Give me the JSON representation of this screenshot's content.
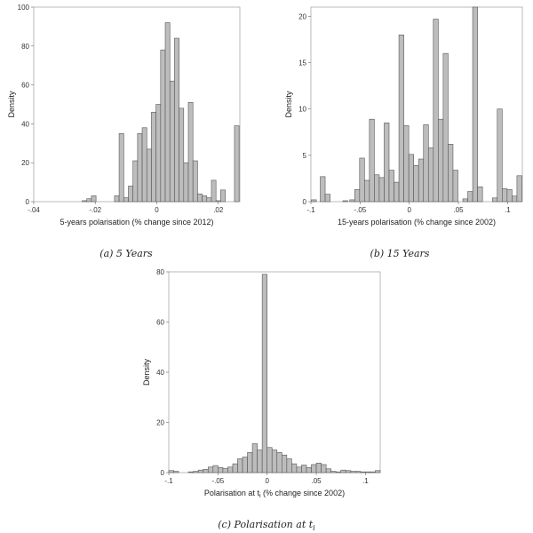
{
  "chart_data": [
    {
      "type": "bar",
      "id": "a",
      "caption": "(a) 5 Years",
      "xlabel": "5-years polarisation (% change since 2012)",
      "ylabel": "Density",
      "xlim": [
        -0.04,
        0.027
      ],
      "ylim": [
        0,
        100
      ],
      "xticks": [
        -0.04,
        -0.02,
        0,
        0.02
      ],
      "xtick_labels": [
        "-.04",
        "-.02",
        "0",
        ".02"
      ],
      "yticks": [
        0,
        20,
        40,
        60,
        80,
        100
      ],
      "ytick_labels": [
        "0",
        "20",
        "40",
        "60",
        "80",
        "100"
      ],
      "grid": false,
      "bar_width": 0.0015,
      "x": [
        -0.0235,
        -0.022,
        -0.0205,
        -0.013,
        -0.0115,
        -0.01,
        -0.0085,
        -0.007,
        -0.0055,
        -0.004,
        -0.0025,
        -0.001,
        0.0005,
        0.002,
        0.0035,
        0.005,
        0.0065,
        0.008,
        0.0095,
        0.011,
        0.0125,
        0.014,
        0.0155,
        0.017,
        0.0185,
        0.02,
        0.0215,
        0.026
      ],
      "values": [
        0.5,
        1.5,
        3,
        3,
        35,
        2,
        8,
        21,
        35,
        38,
        27,
        46,
        50,
        78,
        92,
        62,
        84,
        48,
        20,
        51,
        21,
        4,
        3,
        2,
        11,
        0.5,
        6,
        39
      ]
    },
    {
      "type": "bar",
      "id": "b",
      "caption": "(b) 15 Years",
      "xlabel": "15-years polarisation (% change since 2002)",
      "ylabel": "Density",
      "xlim": [
        -0.1,
        0.115
      ],
      "ylim": [
        0,
        21
      ],
      "xticks": [
        -0.1,
        -0.05,
        0,
        0.05,
        0.1
      ],
      "xtick_labels": [
        "-.1",
        "-.05",
        "0",
        ".05",
        ".1"
      ],
      "yticks": [
        0,
        5,
        10,
        15,
        20
      ],
      "ytick_labels": [
        "0",
        "5",
        "10",
        "15",
        "20"
      ],
      "grid": false,
      "bar_width": 0.005,
      "x": [
        -0.097,
        -0.088,
        -0.083,
        -0.065,
        -0.058,
        -0.053,
        -0.048,
        -0.043,
        -0.038,
        -0.033,
        -0.028,
        -0.023,
        -0.018,
        -0.013,
        -0.008,
        -0.003,
        0.002,
        0.007,
        0.012,
        0.017,
        0.022,
        0.027,
        0.032,
        0.037,
        0.042,
        0.047,
        0.057,
        0.062,
        0.067,
        0.072,
        0.087,
        0.092,
        0.097,
        0.102,
        0.107,
        0.112
      ],
      "values": [
        0.2,
        2.7,
        0.8,
        0.1,
        0.2,
        1.3,
        4.7,
        2.3,
        8.9,
        2.9,
        2.6,
        8.5,
        3.4,
        2.1,
        18,
        8.2,
        5.1,
        3.9,
        4.6,
        8.3,
        5.8,
        19.7,
        8.9,
        16,
        6.2,
        3.4,
        0.3,
        1.1,
        21,
        1.6,
        0.4,
        10,
        1.4,
        1.3,
        0.6,
        2.8
      ]
    },
    {
      "type": "bar",
      "id": "c",
      "caption": "(c) Polarisation at t",
      "caption_subscript": "i",
      "xlabel": "Polarisation at t",
      "xlabel_subscript": "i",
      "xlabel_suffix": " (% change since 2002)",
      "ylabel": "Density",
      "xlim": [
        -0.1,
        0.115
      ],
      "ylim": [
        0,
        80
      ],
      "xticks": [
        -0.1,
        -0.05,
        0,
        0.05,
        0.1
      ],
      "xtick_labels": [
        "-.1",
        "-.05",
        "0",
        ".05",
        ".1"
      ],
      "yticks": [
        0,
        20,
        40,
        60,
        80
      ],
      "ytick_labels": [
        "0",
        "20",
        "40",
        "60",
        "80"
      ],
      "grid": false,
      "bar_width": 0.005,
      "x": [
        -0.0975,
        -0.0925,
        -0.0775,
        -0.0725,
        -0.0675,
        -0.0625,
        -0.0575,
        -0.0525,
        -0.0475,
        -0.0425,
        -0.0375,
        -0.0325,
        -0.0275,
        -0.0225,
        -0.0175,
        -0.0125,
        -0.0075,
        -0.0025,
        0.0025,
        0.0075,
        0.0125,
        0.0175,
        0.0225,
        0.0275,
        0.0325,
        0.0375,
        0.0425,
        0.0475,
        0.0525,
        0.0575,
        0.0625,
        0.0675,
        0.0725,
        0.0775,
        0.0825,
        0.0875,
        0.0925,
        0.0975,
        0.1025,
        0.1075,
        0.1125
      ],
      "values": [
        0.8,
        0.5,
        0.3,
        0.5,
        1,
        1.3,
        2.2,
        2.8,
        2,
        1.7,
        2.2,
        3.5,
        5.5,
        6.2,
        8,
        11.5,
        9,
        79,
        10,
        9,
        8,
        7,
        5.5,
        3.5,
        2.2,
        3,
        2,
        3.2,
        3.8,
        3.2,
        1.5,
        0.5,
        0.3,
        1,
        0.8,
        0.5,
        0.5,
        0.3,
        0.3,
        0.3,
        0.8
      ]
    }
  ]
}
